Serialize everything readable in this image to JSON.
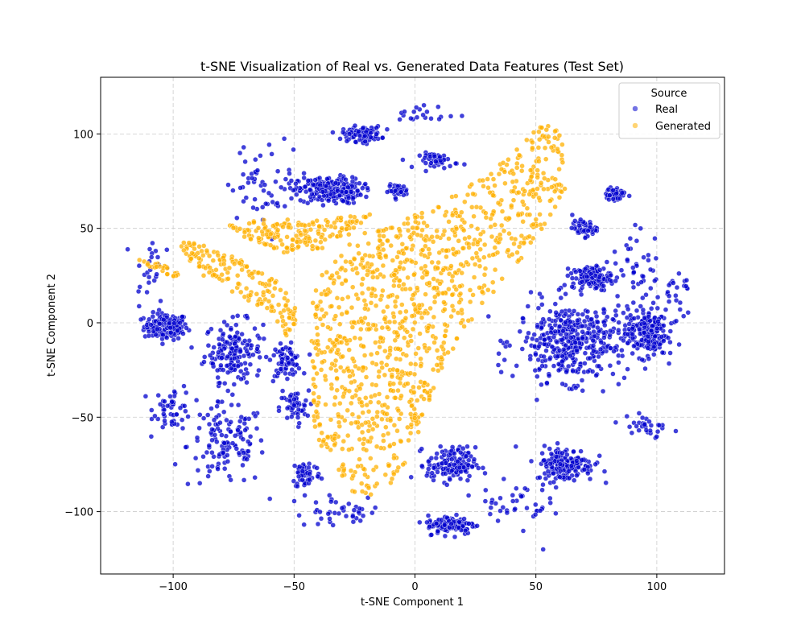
{
  "chart_data": {
    "type": "scatter",
    "title": "t-SNE Visualization of Real vs. Generated Data Features (Test Set)",
    "xlabel": "t-SNE Component 1",
    "ylabel": "t-SNE Component 2",
    "xlim": [
      -130,
      128
    ],
    "ylim": [
      -133,
      130
    ],
    "xticks": [
      -100,
      -50,
      0,
      50,
      100
    ],
    "yticks": [
      -100,
      -50,
      0,
      50,
      100
    ],
    "xtick_labels": [
      "−100",
      "−50",
      "0",
      "50",
      "100"
    ],
    "ytick_labels": [
      "−100",
      "−50",
      "0",
      "50",
      "100"
    ],
    "grid": true,
    "legend": {
      "title": "Source",
      "placement": "top-right",
      "entries": [
        "Real",
        "Generated"
      ]
    },
    "series": [
      {
        "name": "Real",
        "color": "#0000cd",
        "clusters": [
          {
            "x": -103,
            "y": -2,
            "spread": [
              9,
              7
            ],
            "n": 140
          },
          {
            "x": -75,
            "y": -15,
            "spread": [
              12,
              16
            ],
            "n": 170
          },
          {
            "x": -78,
            "y": -65,
            "spread": [
              16,
              22
            ],
            "n": 130
          },
          {
            "x": -100,
            "y": -45,
            "spread": [
              8,
              12
            ],
            "n": 50
          },
          {
            "x": -53,
            "y": -20,
            "spread": [
              6,
              8
            ],
            "n": 70
          },
          {
            "x": -50,
            "y": -45,
            "spread": [
              6,
              9
            ],
            "n": 50
          },
          {
            "x": -45,
            "y": -80,
            "spread": [
              6,
              8
            ],
            "n": 60
          },
          {
            "x": -35,
            "y": 70,
            "spread": [
              13,
              7
            ],
            "n": 220
          },
          {
            "x": -22,
            "y": 100,
            "spread": [
              8,
              4
            ],
            "n": 110
          },
          {
            "x": -7,
            "y": 70,
            "spread": [
              4,
              3
            ],
            "n": 40
          },
          {
            "x": 10,
            "y": 86,
            "spread": [
              8,
              4
            ],
            "n": 50
          },
          {
            "x": 65,
            "y": -10,
            "spread": [
              23,
              21
            ],
            "n": 420
          },
          {
            "x": 15,
            "y": -75,
            "spread": [
              10,
              9
            ],
            "n": 150
          },
          {
            "x": 15,
            "y": -107,
            "spread": [
              10,
              5
            ],
            "n": 120
          },
          {
            "x": 62,
            "y": -75,
            "spread": [
              12,
              9
            ],
            "n": 170
          },
          {
            "x": 73,
            "y": 24,
            "spread": [
              8,
              6
            ],
            "n": 130
          },
          {
            "x": 70,
            "y": 50,
            "spread": [
              5,
              4
            ],
            "n": 50
          },
          {
            "x": 83,
            "y": 68,
            "spread": [
              4,
              4
            ],
            "n": 50
          },
          {
            "x": 96,
            "y": -5,
            "spread": [
              8,
              13
            ],
            "n": 200
          },
          {
            "x": 92,
            "y": 30,
            "spread": [
              10,
              20
            ],
            "n": 40
          },
          {
            "x": -60,
            "y": 75,
            "spread": [
              18,
              20
            ],
            "n": 60
          },
          {
            "x": -30,
            "y": -100,
            "spread": [
              20,
              8
            ],
            "n": 40
          },
          {
            "x": 40,
            "y": -95,
            "spread": [
              15,
              10
            ],
            "n": 40
          },
          {
            "x": -110,
            "y": 30,
            "spread": [
              6,
              20
            ],
            "n": 25
          },
          {
            "x": 108,
            "y": 15,
            "spread": [
              6,
              15
            ],
            "n": 25
          },
          {
            "x": 95,
            "y": -55,
            "spread": [
              10,
              8
            ],
            "n": 30
          },
          {
            "x": 5,
            "y": 110,
            "spread": [
              12,
              5
            ],
            "n": 20
          },
          {
            "x": 53,
            "y": -120,
            "spread": [
              0,
              0
            ],
            "n": 1
          }
        ]
      },
      {
        "name": "Generated",
        "color": "#ffb000",
        "shapes": [
          {
            "kind": "main-blob",
            "polygon": [
              [
                -43,
                10
              ],
              [
                -38,
                30
              ],
              [
                -22,
                48
              ],
              [
                5,
                60
              ],
              [
                30,
                78
              ],
              [
                45,
                95
              ],
              [
                55,
                111
              ],
              [
                62,
                95
              ],
              [
                62,
                70
              ],
              [
                48,
                40
              ],
              [
                30,
                12
              ],
              [
                18,
                -10
              ],
              [
                8,
                -35
              ],
              [
                2,
                -58
              ],
              [
                -5,
                -78
              ],
              [
                -14,
                -92
              ],
              [
                -24,
                -93
              ],
              [
                -35,
                -78
              ],
              [
                -42,
                -58
              ],
              [
                -43,
                -30
              ]
            ],
            "n": 1100
          },
          {
            "kind": "upper-band",
            "polygon": [
              [
                -77,
                52
              ],
              [
                -60,
                55
              ],
              [
                -35,
                55
              ],
              [
                -18,
                58
              ],
              [
                -22,
                50
              ],
              [
                -40,
                38
              ],
              [
                -55,
                37
              ],
              [
                -70,
                45
              ]
            ],
            "n": 170
          },
          {
            "kind": "left-wedge",
            "polygon": [
              [
                -96,
                44
              ],
              [
                -85,
                40
              ],
              [
                -68,
                32
              ],
              [
                -55,
                20
              ],
              [
                -48,
                8
              ],
              [
                -50,
                -5
              ],
              [
                -55,
                -8
              ],
              [
                -58,
                5
              ],
              [
                -70,
                12
              ],
              [
                -88,
                25
              ],
              [
                -97,
                38
              ]
            ],
            "n": 170
          },
          {
            "kind": "left-tip",
            "polygon": [
              [
                -114,
                34
              ],
              [
                -105,
                31
              ],
              [
                -97,
                26
              ],
              [
                -99,
                24
              ],
              [
                -108,
                28
              ],
              [
                -115,
                33
              ]
            ],
            "n": 25
          }
        ]
      }
    ]
  }
}
